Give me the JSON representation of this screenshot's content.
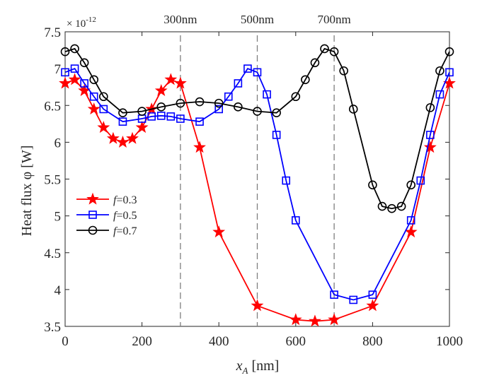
{
  "chart_data": {
    "type": "line",
    "title": "",
    "xlabel_main": "x",
    "xlabel_sub": "A",
    "xlabel_unit": " [nm]",
    "ylabel": "Heat flux φ [W]",
    "y_exponent_prefix": "× 10",
    "y_exponent": "-12",
    "xlim": [
      0,
      1000
    ],
    "ylim": [
      3.5,
      7.5
    ],
    "xticks": [
      0,
      200,
      400,
      600,
      800,
      1000
    ],
    "xtick_labels": [
      "0",
      "200",
      "400",
      "600",
      "800",
      "1000"
    ],
    "yticks": [
      3.5,
      4,
      4.5,
      5,
      5.5,
      6,
      6.5,
      7,
      7.5
    ],
    "ytick_labels": [
      "3.5",
      "4",
      "4.5",
      "5",
      "5.5",
      "6",
      "6.5",
      "7",
      "7.5"
    ],
    "grid": false,
    "legend_position": "center-left",
    "vlines": [
      {
        "x": 300,
        "label": "300nm"
      },
      {
        "x": 500,
        "label": "500nm"
      },
      {
        "x": 700,
        "label": "700nm"
      }
    ],
    "series": [
      {
        "name": "f=0.3",
        "f_symbol": "f",
        "f_value": "=0.3",
        "color": "#ff0000",
        "marker": "star",
        "x": [
          0,
          25,
          50,
          75,
          100,
          125,
          150,
          175,
          200,
          225,
          250,
          275,
          300,
          350,
          400,
          500,
          600,
          650,
          700,
          800,
          900,
          950,
          1000
        ],
        "y": [
          6.8,
          6.85,
          6.7,
          6.45,
          6.2,
          6.05,
          6.0,
          6.05,
          6.2,
          6.45,
          6.7,
          6.85,
          6.8,
          5.93,
          4.78,
          3.78,
          3.59,
          3.57,
          3.59,
          3.78,
          4.78,
          5.93,
          6.8
        ]
      },
      {
        "name": "f=0.5",
        "f_symbol": "f",
        "f_value": "=0.5",
        "color": "#0000ff",
        "marker": "square",
        "x": [
          0,
          25,
          50,
          75,
          100,
          150,
          200,
          225,
          250,
          275,
          300,
          350,
          400,
          425,
          450,
          475,
          500,
          525,
          550,
          575,
          600,
          700,
          750,
          800,
          900,
          925,
          950,
          975,
          1000
        ],
        "y": [
          6.95,
          7.0,
          6.8,
          6.62,
          6.45,
          6.28,
          6.32,
          6.35,
          6.36,
          6.35,
          6.32,
          6.28,
          6.45,
          6.62,
          6.8,
          7.0,
          6.95,
          6.65,
          6.1,
          5.48,
          4.94,
          3.93,
          3.86,
          3.93,
          4.94,
          5.48,
          6.1,
          6.65,
          6.95
        ]
      },
      {
        "name": "f=0.7",
        "f_symbol": "f",
        "f_value": "=0.7",
        "color": "#000000",
        "marker": "circle",
        "x": [
          0,
          25,
          50,
          75,
          100,
          150,
          200,
          250,
          300,
          350,
          400,
          450,
          500,
          550,
          600,
          625,
          650,
          675,
          700,
          725,
          750,
          800,
          825,
          850,
          875,
          900,
          950,
          975,
          1000
        ],
        "y": [
          7.23,
          7.27,
          7.08,
          6.85,
          6.62,
          6.4,
          6.42,
          6.48,
          6.53,
          6.55,
          6.53,
          6.48,
          6.42,
          6.4,
          6.62,
          6.85,
          7.08,
          7.27,
          7.23,
          6.97,
          6.45,
          5.42,
          5.13,
          5.1,
          5.13,
          5.42,
          6.47,
          6.97,
          7.23
        ]
      }
    ]
  }
}
